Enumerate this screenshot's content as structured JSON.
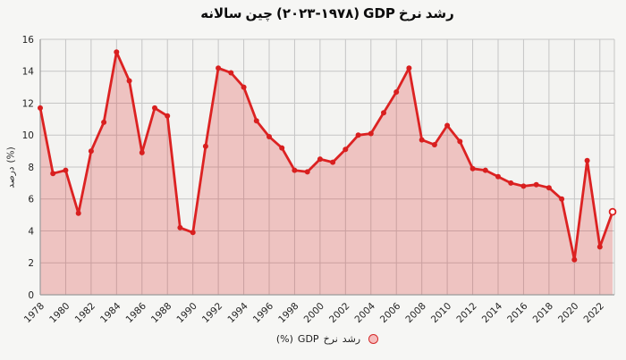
{
  "title": {
    "parts": [
      "سالانه",
      "چین",
      "(۲۰۲۳-۱۹۷۸)",
      "GDP",
      "نرخ",
      "رشد"
    ]
  },
  "y_axis": {
    "label_parts": [
      "درصد",
      "(%)"
    ]
  },
  "legend": {
    "label_parts": [
      "(%)",
      "GDP",
      "نرخ",
      "رشد"
    ],
    "marker": "circle-marker"
  },
  "colors": {
    "line": "#dc2222",
    "marker": "#d81f1f",
    "last_marker_fill": "#ffffff",
    "area_fill": "rgba(221,42,42,0.24)",
    "grid": "#c5c5c5",
    "spine": "#9a9a9a",
    "tick_label": "#222222",
    "title_text": "#0b0b0b",
    "figure_bg": "#f6f6f4",
    "plot_bg": "#f3f3f1",
    "legend_marker_fill": "#f6bdbd"
  },
  "chart_data": {
    "type": "line",
    "area_fill": true,
    "marker": "circle",
    "last_point_open_marker": true,
    "grid": true,
    "legend_position": "bottom-center",
    "x": [
      1978,
      1979,
      1980,
      1981,
      1982,
      1983,
      1984,
      1985,
      1986,
      1987,
      1988,
      1989,
      1990,
      1991,
      1992,
      1993,
      1994,
      1995,
      1996,
      1997,
      1998,
      1999,
      2000,
      2001,
      2002,
      2003,
      2004,
      2005,
      2006,
      2007,
      2008,
      2009,
      2010,
      2011,
      2012,
      2013,
      2014,
      2015,
      2016,
      2017,
      2018,
      2019,
      2020,
      2021,
      2022,
      2023
    ],
    "series": [
      {
        "name": "نرخ رشد GDP (%)",
        "values": [
          11.7,
          7.6,
          7.8,
          5.1,
          9.0,
          10.8,
          15.2,
          13.4,
          8.9,
          11.7,
          11.2,
          4.2,
          3.9,
          9.3,
          14.2,
          13.9,
          13.0,
          10.9,
          9.9,
          9.2,
          7.8,
          7.7,
          8.5,
          8.3,
          9.1,
          10.0,
          10.1,
          11.4,
          12.7,
          14.2,
          9.7,
          9.4,
          10.6,
          9.6,
          7.9,
          7.8,
          7.4,
          7.0,
          6.8,
          6.9,
          6.7,
          6.0,
          2.2,
          8.4,
          3.0,
          5.2
        ]
      }
    ],
    "xlim": [
      1978,
      2023
    ],
    "ylim": [
      0,
      16
    ],
    "xticks": [
      1978,
      1980,
      1982,
      1984,
      1986,
      1988,
      1990,
      1992,
      1994,
      1996,
      1998,
      2000,
      2002,
      2004,
      2006,
      2008,
      2010,
      2012,
      2014,
      2016,
      2018,
      2020,
      2022
    ],
    "yticks": [
      0,
      2,
      4,
      6,
      8,
      10,
      12,
      14,
      16
    ]
  }
}
